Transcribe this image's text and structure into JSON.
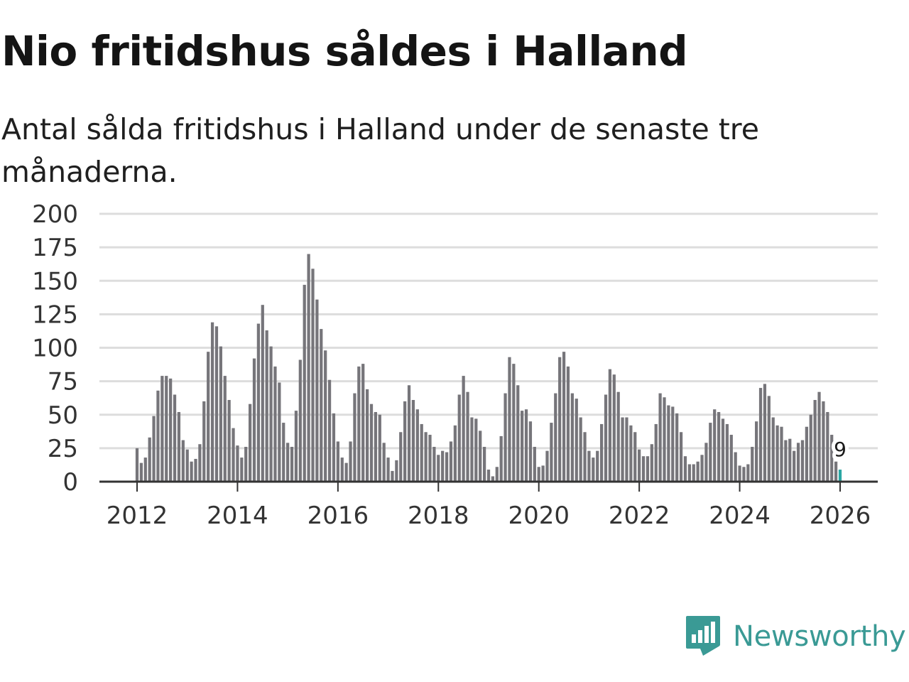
{
  "header": {
    "title": "Nio fritidshus såldes i Halland",
    "subtitle": "Antal sålda fritidshus i Halland under de senaste tre månaderna."
  },
  "brand": {
    "name": "Newsworthy",
    "color": "#3a9a95"
  },
  "colors": {
    "bar": "#76757a",
    "highlight": "#2aa6a3",
    "grid": "#dddddd",
    "axis": "#333333"
  },
  "chart_data": {
    "type": "bar",
    "title": "Nio fritidshus såldes i Halland",
    "subtitle": "Antal sålda fritidshus i Halland under de senaste tre månaderna.",
    "xlabel": "",
    "ylabel": "",
    "ylim": [
      0,
      200
    ],
    "yticks": [
      0,
      25,
      50,
      75,
      100,
      125,
      150,
      175,
      200
    ],
    "xlim": [
      2011.75,
      2026.75
    ],
    "xticks": [
      2012,
      2014,
      2016,
      2018,
      2020,
      2022,
      2024,
      2026
    ],
    "x_start": 2012.0,
    "x_step_months": 1,
    "grid": true,
    "highlight_label": "9",
    "values": [
      25,
      14,
      18,
      33,
      49,
      68,
      79,
      79,
      77,
      65,
      52,
      31,
      24,
      15,
      17,
      28,
      60,
      97,
      119,
      116,
      101,
      79,
      61,
      40,
      27,
      18,
      26,
      58,
      92,
      118,
      132,
      113,
      101,
      86,
      74,
      44,
      29,
      26,
      53,
      91,
      147,
      170,
      159,
      136,
      114,
      98,
      76,
      51,
      30,
      18,
      14,
      30,
      66,
      86,
      88,
      69,
      58,
      52,
      50,
      29,
      18,
      8,
      16,
      37,
      60,
      72,
      61,
      54,
      43,
      37,
      35,
      26,
      20,
      23,
      22,
      30,
      42,
      65,
      79,
      67,
      48,
      47,
      38,
      26,
      9,
      4,
      11,
      34,
      66,
      93,
      88,
      72,
      53,
      54,
      45,
      26,
      11,
      12,
      23,
      44,
      66,
      93,
      97,
      86,
      66,
      62,
      48,
      37,
      23,
      18,
      23,
      43,
      65,
      84,
      80,
      67,
      48,
      48,
      42,
      37,
      24,
      19,
      19,
      28,
      43,
      66,
      63,
      57,
      56,
      51,
      37,
      19,
      13,
      13,
      15,
      20,
      29,
      44,
      54,
      52,
      47,
      43,
      35,
      22,
      12,
      11,
      13,
      26,
      45,
      70,
      73,
      64,
      48,
      42,
      41,
      31,
      32,
      23,
      29,
      31,
      41,
      50,
      61,
      67,
      60,
      52,
      35,
      15,
      9
    ]
  }
}
